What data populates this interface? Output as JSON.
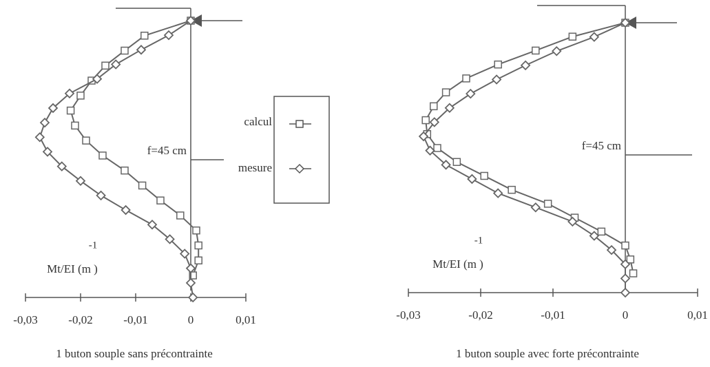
{
  "chart_data": [
    {
      "type": "line",
      "caption": "1 buton souple sans précontrainte",
      "annotation": "f=45 cm",
      "xlabel": "Mt/EI (m )",
      "xlabel_exp": "-1",
      "xlim": [
        -0.03,
        0.01
      ],
      "xticks": [
        {
          "value": -0.03,
          "label": "-0,03"
        },
        {
          "value": -0.02,
          "label": "-0,02"
        },
        {
          "value": -0.01,
          "label": "-0,01"
        },
        0,
        {
          "value": 0.01,
          "label": "0,01"
        }
      ],
      "series": [
        {
          "name": "calcul",
          "marker": "square",
          "color": "#666",
          "values": [
            0,
            -0.0084,
            -0.012,
            -0.0155,
            -0.018,
            -0.02,
            -0.0218,
            -0.021,
            -0.019,
            -0.016,
            -0.012,
            -0.0088,
            -0.0055,
            -0.0019,
            0.001,
            0.0014,
            0.0014,
            0.0004
          ]
        },
        {
          "name": "mesure",
          "marker": "diamond",
          "color": "#666",
          "values": [
            0,
            -0.004,
            -0.009,
            -0.0136,
            -0.017,
            -0.022,
            -0.025,
            -0.0265,
            -0.0274,
            -0.026,
            -0.0234,
            -0.02,
            -0.0163,
            -0.0118,
            -0.007,
            -0.0038,
            -0.0011,
            0,
            0,
            0.0004
          ]
        }
      ]
    },
    {
      "type": "line",
      "caption": "1 buton souple avec forte précontrainte",
      "annotation": "f=45 cm",
      "xlabel": "Mt/EI (m )",
      "xlabel_exp": "-1",
      "xlim": [
        -0.03,
        0.01
      ],
      "xticks": [
        {
          "value": -0.03,
          "label": "-0,03"
        },
        {
          "value": -0.02,
          "label": "-0,02"
        },
        {
          "value": -0.01,
          "label": "-0,01"
        },
        0,
        {
          "value": 0.01,
          "label": "0,01"
        }
      ],
      "series": [
        {
          "marker": "square",
          "color": "#666",
          "values": [
            0,
            -0.0073,
            -0.0124,
            -0.0176,
            -0.022,
            -0.0248,
            -0.0265,
            -0.0276,
            -0.0274,
            -0.026,
            -0.0233,
            -0.0195,
            -0.0157,
            -0.0107,
            -0.007,
            -0.0033,
            0,
            0.0007,
            0.0011
          ]
        },
        {
          "marker": "diamond",
          "color": "#666",
          "values": [
            0,
            -0.0043,
            -0.0095,
            -0.0138,
            -0.0178,
            -0.0214,
            -0.0243,
            -0.0264,
            -0.0279,
            -0.027,
            -0.0248,
            -0.0212,
            -0.0176,
            -0.0124,
            -0.0073,
            -0.0043,
            -0.0019,
            0,
            0,
            0
          ]
        }
      ]
    }
  ]
}
